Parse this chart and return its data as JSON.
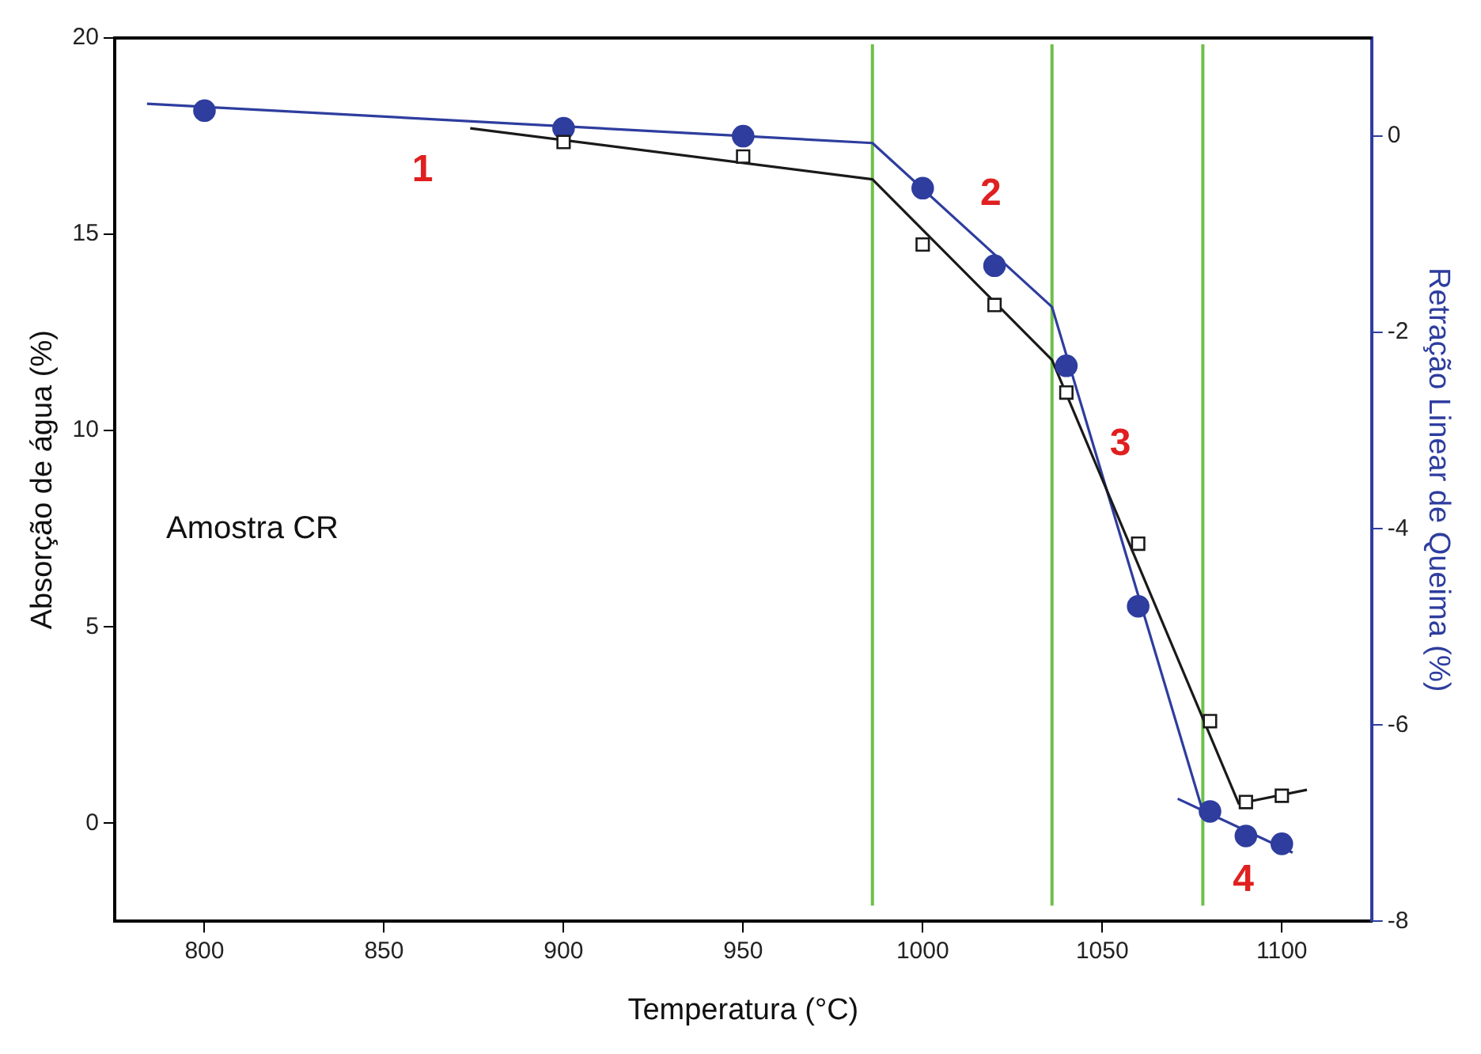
{
  "chart_data": {
    "type": "scatter",
    "xlabel": "Temperatura (°C)",
    "ylabel": "Absorção de água (%)",
    "y2label": "Retração Linear de Queima (%)",
    "xlim": [
      775,
      1125
    ],
    "xticks": [
      800,
      850,
      900,
      950,
      1000,
      1050,
      1100
    ],
    "ylim": [
      -2.5,
      20
    ],
    "yticks": [
      0,
      5,
      10,
      15,
      20
    ],
    "y2lim": [
      -8,
      1
    ],
    "y2ticks": [
      -8,
      -6,
      -4,
      -2,
      0
    ],
    "series": [
      {
        "type": "scatter",
        "marker": "square",
        "color": "#1a1a1a",
        "x": [
          900,
          950,
          1000,
          1020,
          1040,
          1060,
          1080,
          1090,
          1100
        ],
        "values": [
          17.35,
          16.98,
          14.74,
          13.2,
          10.97,
          7.12,
          2.6,
          0.54,
          0.7
        ]
      },
      {
        "type": "scatter",
        "marker": "circle",
        "axis": "y2",
        "color": "#2e3d9e",
        "x": [
          800,
          900,
          950,
          1000,
          1020,
          1040,
          1060,
          1080,
          1090,
          1100
        ],
        "values": [
          0.26,
          0.08,
          0,
          -0.53,
          -1.32,
          -2.34,
          -4.79,
          -6.88,
          -7.13,
          -7.21
        ]
      },
      {
        "type": "line",
        "marker": "none",
        "color": "#1a1a1a",
        "x": [
          874,
          986,
          1036,
          1088,
          1107
        ],
        "values": [
          17.7,
          16.4,
          11.8,
          0.5,
          0.85
        ]
      },
      {
        "type": "line",
        "marker": "none",
        "axis": "y2",
        "color": "#2e3d9e",
        "x": [
          784,
          986,
          1036,
          1078
        ],
        "values": [
          0.33,
          -0.07,
          -1.74,
          -6.88
        ]
      },
      {
        "type": "line",
        "marker": "none",
        "axis": "y2",
        "color": "#2e3d9e",
        "x": [
          1071,
          1103
        ],
        "values": [
          -6.75,
          -7.3
        ]
      }
    ],
    "ref_lines": [
      {
        "axis": "x",
        "value": 986,
        "color": "#6cc04a"
      },
      {
        "axis": "x",
        "value": 1036,
        "color": "#6cc04a"
      },
      {
        "axis": "x",
        "value": 1078,
        "color": "#6cc04a"
      }
    ],
    "annotations": [
      "1",
      "2",
      "3",
      "4",
      "Amostra CR"
    ]
  }
}
